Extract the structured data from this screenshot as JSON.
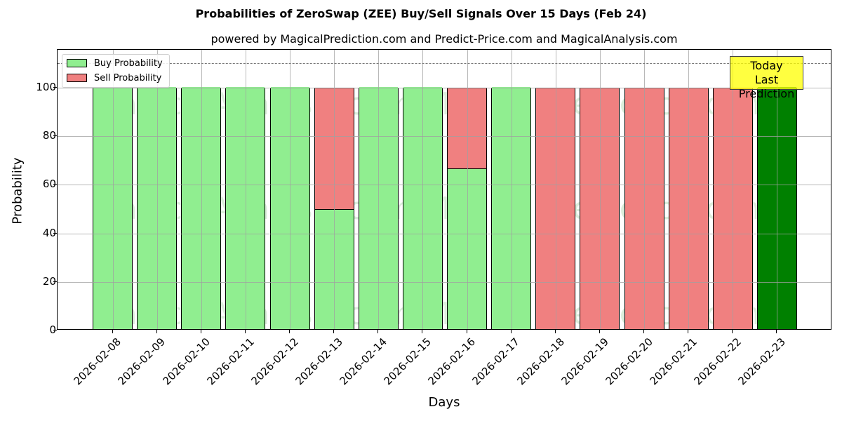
{
  "header": {
    "title": "Probabilities of ZeroSwap (ZEE) Buy/Sell Signals Over 15 Days (Feb 24)",
    "subtitle": "powered by MagicalPrediction.com and Predict-Price.com and MagicalAnalysis.com"
  },
  "legend": {
    "items": [
      {
        "label": "Buy Probability",
        "color": "#90ee90"
      },
      {
        "label": "Sell Probability",
        "color": "#f08080"
      }
    ]
  },
  "annotation": {
    "line1": "Today",
    "line2": "Last Prediction",
    "color": "#ffff00"
  },
  "watermarks": [
    "MagicalAnalysis.com",
    "MagicalPrediction.com"
  ],
  "colors": {
    "buy": "#90ee90",
    "sell": "#f08080",
    "today": "#008000"
  },
  "chart_data": {
    "type": "bar",
    "stacked": true,
    "title": "Probabilities of ZeroSwap (ZEE) Buy/Sell Signals Over 15 Days (Feb 24)",
    "subtitle": "powered by MagicalPrediction.com and Predict-Price.com and MagicalAnalysis.com",
    "xlabel": "Days",
    "ylabel": "Probability",
    "ylim": [
      0,
      115.6
    ],
    "yticks": [
      0,
      20,
      40,
      60,
      80,
      100
    ],
    "grid": true,
    "legend_position": "upper left",
    "reference_line": {
      "y": 110,
      "style": "dashed"
    },
    "categories": [
      "2026-02-08",
      "2026-02-09",
      "2026-02-10",
      "2026-02-11",
      "2026-02-12",
      "2026-02-13",
      "2026-02-14",
      "2026-02-15",
      "2026-02-16",
      "2026-02-17",
      "2026-02-18",
      "2026-02-19",
      "2026-02-20",
      "2026-02-21",
      "2026-02-22",
      "2026-02-23"
    ],
    "series": [
      {
        "name": "Buy Probability",
        "values": [
          100,
          100,
          100,
          100,
          100,
          50,
          100,
          100,
          66.7,
          100,
          0,
          0,
          0,
          0,
          0,
          100
        ]
      },
      {
        "name": "Sell Probability",
        "values": [
          0,
          0,
          0,
          0,
          0,
          50,
          0,
          0,
          33.3,
          0,
          100,
          100,
          100,
          100,
          100,
          0
        ]
      }
    ],
    "highlight": {
      "category": "2026-02-23",
      "label": "Today / Last Prediction",
      "color": "#008000"
    }
  }
}
